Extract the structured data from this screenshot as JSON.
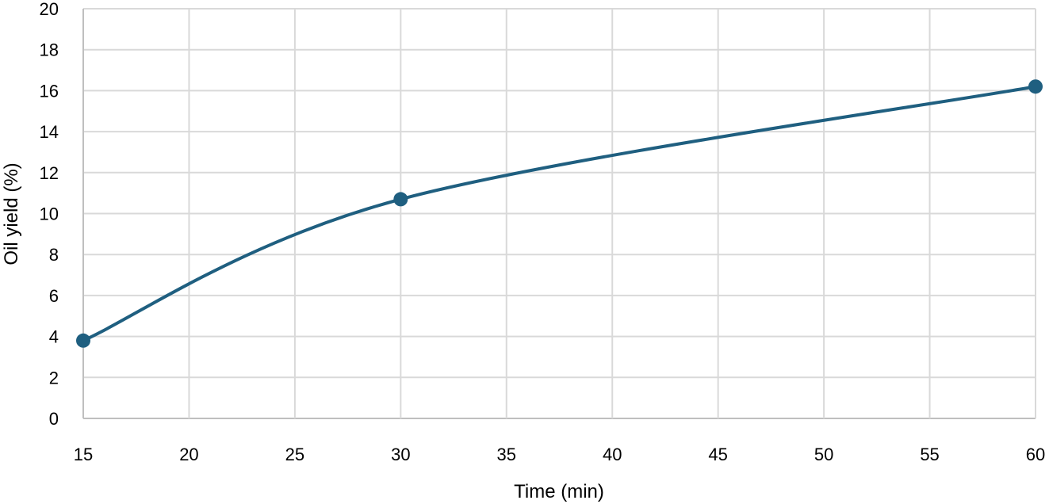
{
  "chart_data": {
    "type": "line",
    "title": "",
    "xlabel": "Time (min)",
    "ylabel": "Oil yield (%)",
    "xlim": [
      15,
      60
    ],
    "ylim": [
      0,
      20
    ],
    "x_ticks": [
      15,
      20,
      25,
      30,
      35,
      40,
      45,
      50,
      55,
      60
    ],
    "y_ticks": [
      0,
      2,
      4,
      6,
      8,
      10,
      12,
      14,
      16,
      18,
      20
    ],
    "grid": true,
    "legend": null,
    "smooth": true,
    "series": [
      {
        "name": "Oil yield",
        "color": "#1f5f80",
        "x": [
          15,
          30,
          60
        ],
        "y": [
          3.8,
          10.7,
          16.2
        ]
      }
    ]
  },
  "colors": {
    "line": "#1f5f80",
    "grid": "#d9d9d9",
    "axis": "#bfbfbf"
  }
}
